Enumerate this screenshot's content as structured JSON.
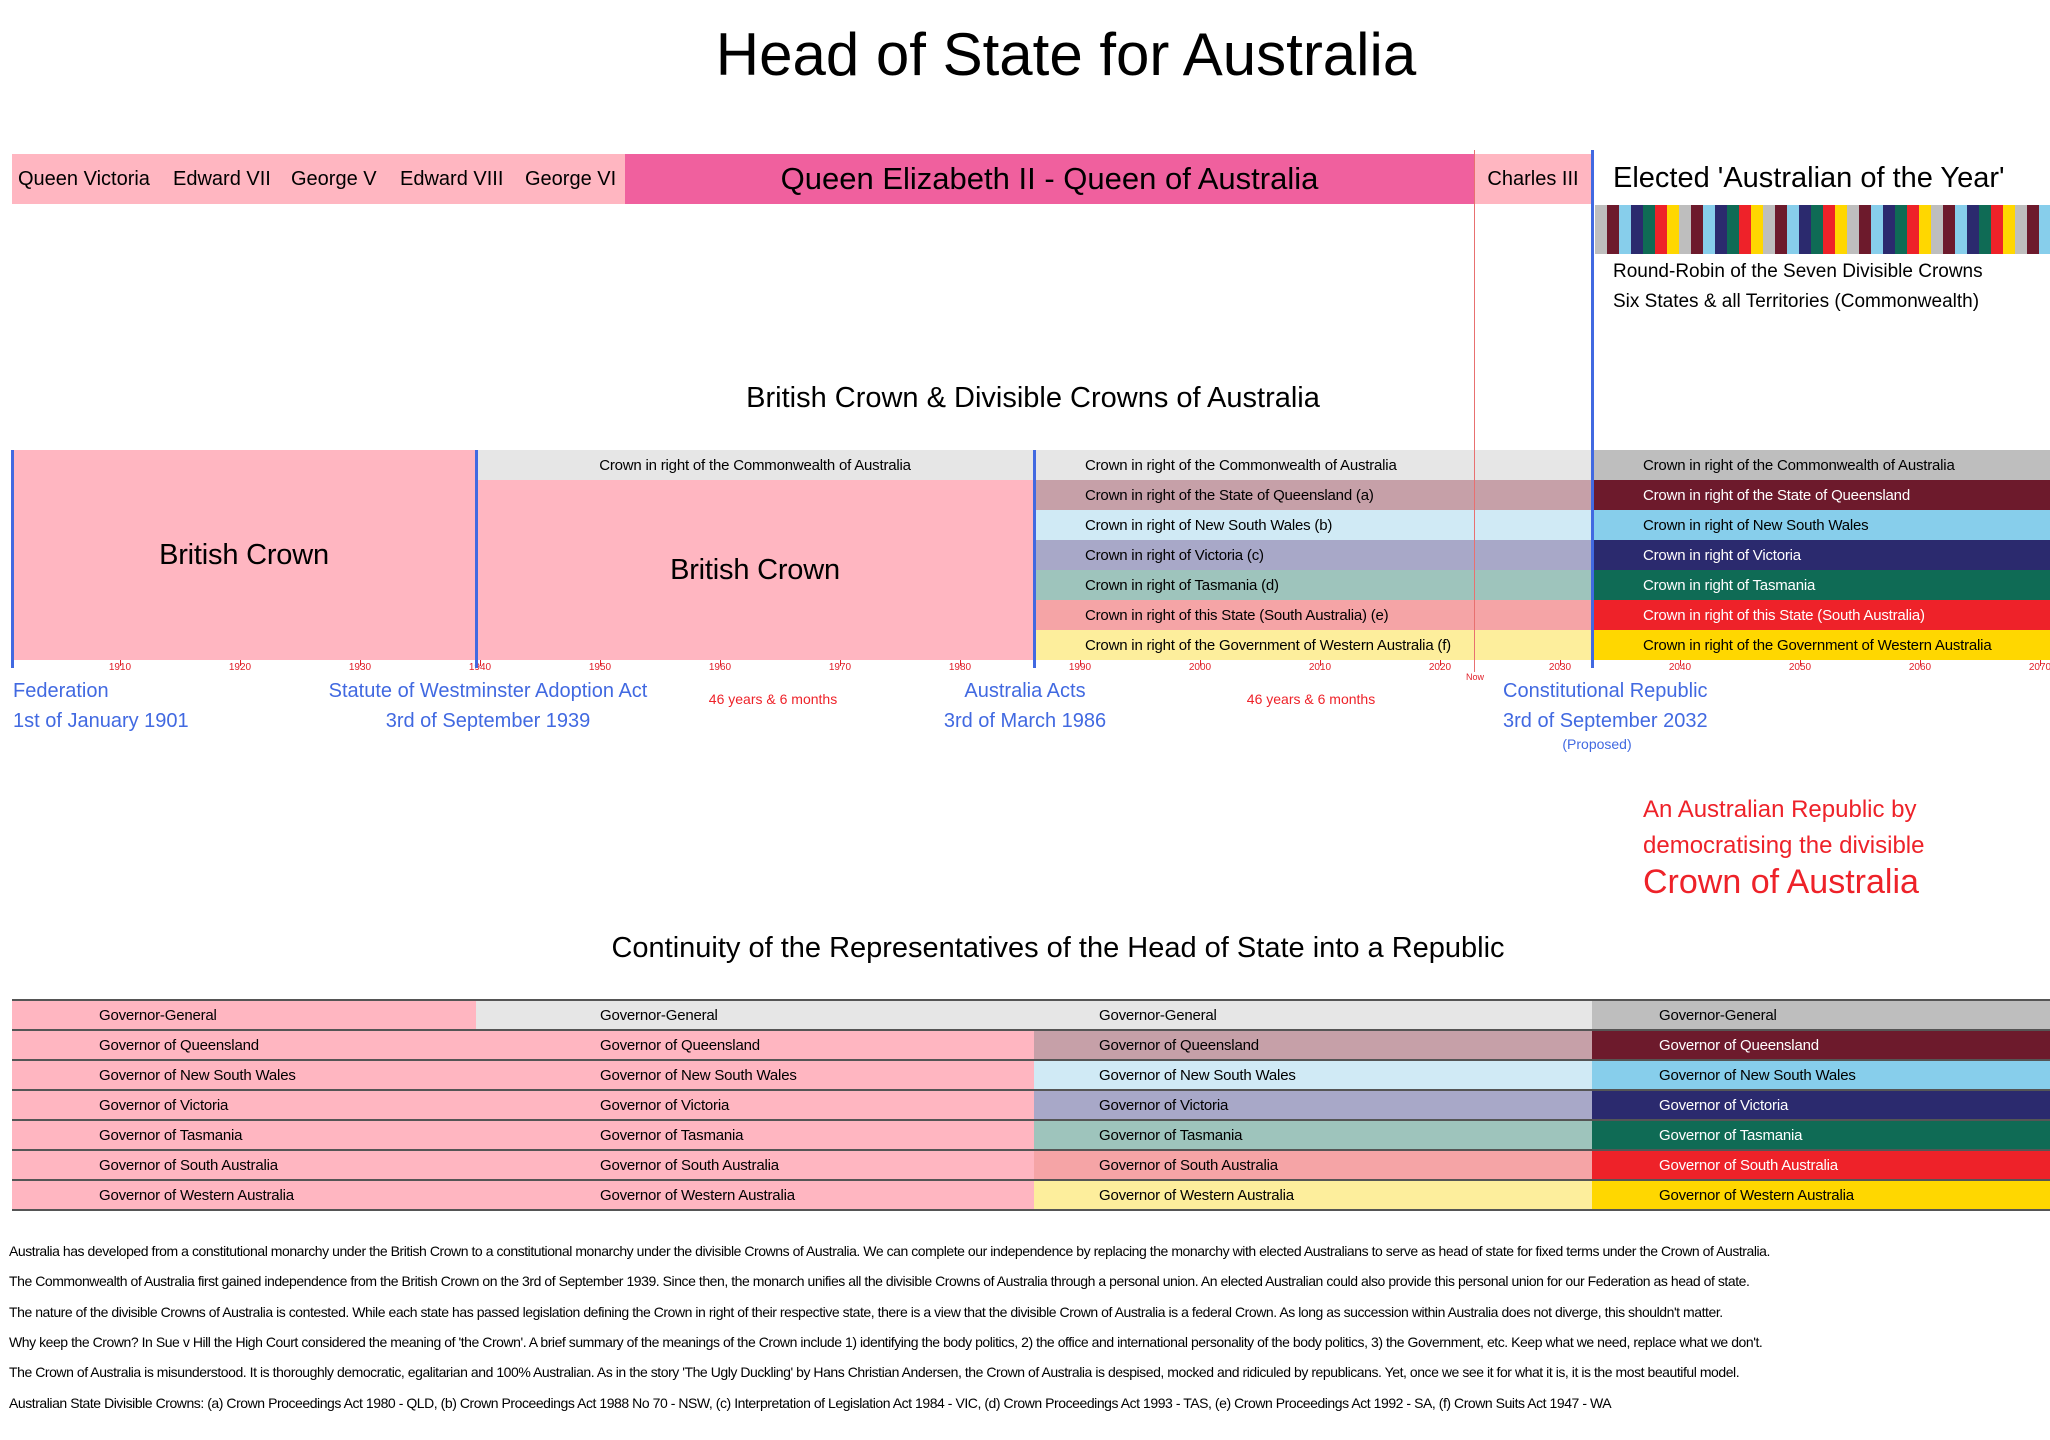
{
  "title": "Head of State for Australia",
  "monarchs": [
    {
      "name": "Queen Victoria"
    },
    {
      "name": "Edward VII"
    },
    {
      "name": "George V"
    },
    {
      "name": "Edward VIII"
    },
    {
      "name": "George VI"
    },
    {
      "name": "Queen Elizabeth II - Queen of Australia"
    },
    {
      "name": "Charles III"
    }
  ],
  "elected": {
    "title": "Elected 'Australian of the Year'",
    "line1": "Round-Robin of the Seven Divisible Crowns",
    "line2": "Six States & all Territories (Commonwealth)",
    "stripe_colors": [
      "#bebebe",
      "#6d1a2c",
      "#87ceeb",
      "#2b2a6e",
      "#0f6b55",
      "#ee2229",
      "#ffd700"
    ]
  },
  "crowns_title": "British Crown & Divisible Crowns of Australia",
  "british_crown": "British Crown",
  "col2_commonwealth": "Crown in right of the Commonwealth of Australia",
  "col3_rows": [
    "Crown in right of the Commonwealth of Australia",
    "Crown in right of the State of Queensland (a)",
    "Crown in right of New South Wales (b)",
    "Crown in right of Victoria (c)",
    "Crown in right of Tasmania (d)",
    "Crown in right of this State (South Australia) (e)",
    "Crown in right of the Government of Western Australia (f)"
  ],
  "col4_rows": [
    "Crown in right of the Commonwealth of Australia",
    "Crown in right of the State of Queensland",
    "Crown in right of New South Wales",
    "Crown in right of Victoria",
    "Crown in right of Tasmania",
    "Crown in right of this State (South Australia)",
    "Crown in right of the Government of Western Australia"
  ],
  "colors": {
    "british": "#ffb6c1",
    "elizabeth": "#f0609e",
    "pastel": [
      "#e6e6e6",
      "#c6a0a8",
      "#d0eaf5",
      "#a8a8c8",
      "#9ec4bc",
      "#f5a4a6",
      "#fdee9c"
    ],
    "strong": [
      "#bebebe",
      "#6d1a2c",
      "#87ceeb",
      "#2b2a6e",
      "#0f6b55",
      "#ee2229",
      "#ffd700"
    ],
    "strong_text": [
      "#000",
      "#fff",
      "#000",
      "#fff",
      "#fff",
      "#fff",
      "#000"
    ],
    "event": "#4169e1",
    "red": "#ee2229"
  },
  "axis": {
    "ticks": [
      1910,
      1920,
      1930,
      1940,
      1950,
      1960,
      1970,
      1980,
      1990,
      2000,
      2010,
      2020,
      2030,
      2040,
      2050,
      2060,
      2070
    ],
    "now_label": "Now",
    "now_year": 2022.8
  },
  "events": {
    "federation": {
      "line1": "Federation",
      "line2": "1st of January 1901"
    },
    "statute": {
      "line1": "Statute of Westminster Adoption Act",
      "line2": "3rd of September 1939"
    },
    "acts": {
      "line1": "Australia Acts",
      "line2": "3rd of March 1986"
    },
    "republic": {
      "line1": "Constitutional Republic",
      "line2": "3rd of September 2032",
      "note": "(Proposed)"
    },
    "span1": "46 years & 6 months",
    "span2": "46 years & 6 months"
  },
  "republic_text": {
    "line1": "An Australian Republic by",
    "line2": "democratising the divisible",
    "line3": "Crown of Australia"
  },
  "continuity_title": "Continuity of the Representatives of the Head of State into a Republic",
  "representatives": [
    "Governor-General",
    "Governor of Queensland",
    "Governor of New South Wales",
    "Governor of Victoria",
    "Governor of Tasmania",
    "Governor of South Australia",
    "Governor of Western Australia"
  ],
  "paragraphs": [
    "Australia has developed from a constitutional monarchy under the British Crown to a constitutional monarchy under the divisible Crowns of Australia. We can complete our independence by replacing the monarchy with elected Australians to serve as head of state for fixed terms under the Crown of Australia.",
    "The Commonwealth of Australia first gained independence from the British Crown on the 3rd of September 1939. Since then, the monarch unifies all the divisible Crowns of Australia through a personal union. An elected Australian could also provide this personal union for our Federation as head of state.",
    "The nature of the divisible Crowns of Australia is contested. While each state has passed legislation defining the Crown in right of their respective state, there is a view that the divisible Crown of Australia is a federal Crown. As long as succession within Australia does not diverge, this shouldn't matter.",
    "Why keep the Crown? In Sue v Hill the High Court considered the meaning of 'the Crown'. A brief summary of the meanings of the Crown include 1) identifying the body politics, 2) the office and international personality of the body politics, 3) the Government, etc. Keep what we need, replace what we don't.",
    "The Crown of Australia is misunderstood. It is thoroughly democratic, egalitarian and 100% Australian. As in the story 'The Ugly Duckling' by Hans Christian Andersen, the Crown of Australia is despised, mocked and ridiculed by republicans. Yet, once we see it for what it is, it is the most beautiful model.",
    "Australian State Divisible Crowns: (a) Crown Proceedings Act 1980 - QLD, (b) Crown Proceedings Act 1988 No 70 - NSW, (c) Interpretation of Legislation Act 1984 - VIC, (d) Crown Proceedings Act 1993 - TAS, (e) Crown Proceedings Act 1992 - SA, (f) Crown Suits Act 1947 - WA"
  ]
}
